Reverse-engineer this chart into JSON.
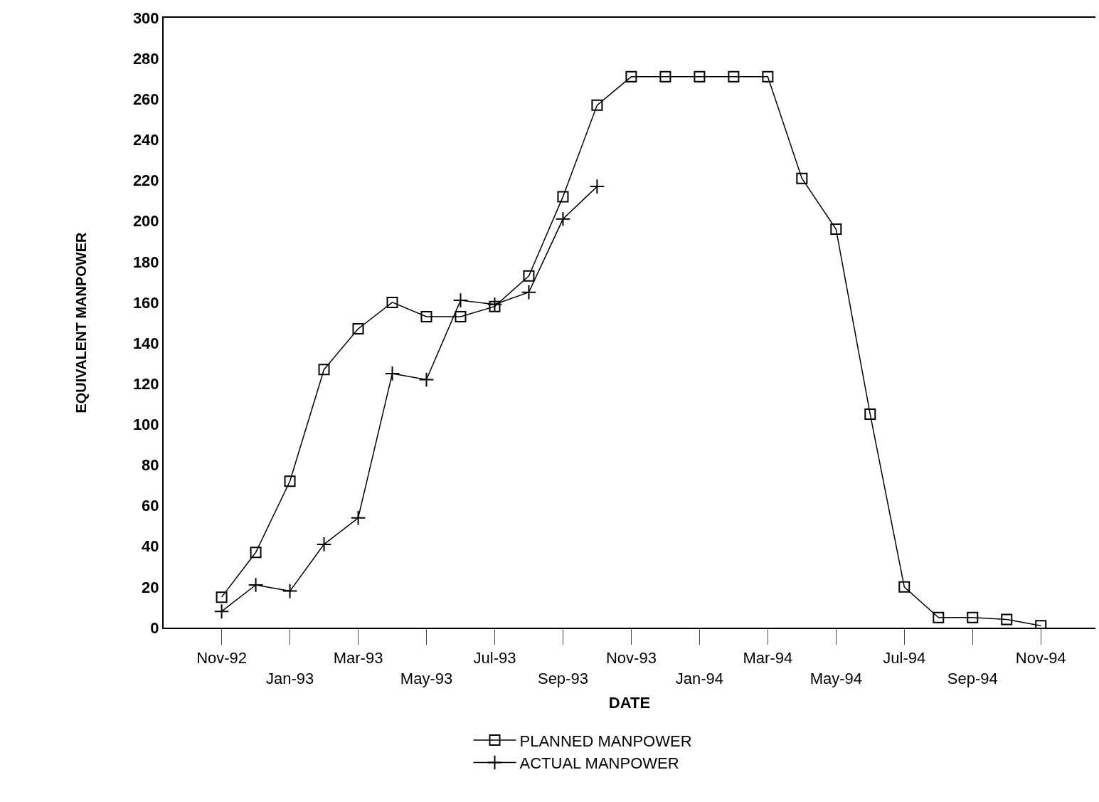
{
  "chart_data": {
    "type": "line",
    "xlabel": "DATE",
    "ylabel": "EQUIVALENT MANPOWER",
    "categories": [
      "Nov-92",
      null,
      "Jan-93",
      null,
      "Mar-93",
      null,
      "May-93",
      null,
      "Jul-93",
      null,
      "Sep-93",
      null,
      "Nov-93",
      null,
      "Jan-94",
      null,
      "Mar-94",
      null,
      "May-94",
      null,
      "Jul-94",
      null,
      "Sep-94",
      null,
      "Nov-94"
    ],
    "series": [
      {
        "name": "PLANNED MANPOWER",
        "color": "#000000",
        "marker": "square",
        "values": [
          15,
          37,
          72,
          127,
          147,
          160,
          153,
          153,
          158,
          173,
          212,
          257,
          271,
          271,
          271,
          271,
          271,
          221,
          196,
          105,
          20,
          5,
          5,
          4,
          1
        ]
      },
      {
        "name": "ACTUAL MANPOWER",
        "color": "#000000",
        "marker": "cross",
        "values": [
          8,
          21,
          18,
          41,
          54,
          125,
          122,
          161,
          159,
          165,
          201,
          217,
          null,
          null,
          null,
          null,
          null,
          null,
          null,
          null,
          null,
          null,
          null,
          null,
          null
        ]
      }
    ],
    "ylim": [
      0,
      300
    ],
    "yticks": [
      0,
      20,
      40,
      60,
      80,
      100,
      120,
      140,
      160,
      180,
      200,
      220,
      240,
      260,
      280,
      300
    ],
    "legend": "bottom",
    "line_style": "solid"
  }
}
